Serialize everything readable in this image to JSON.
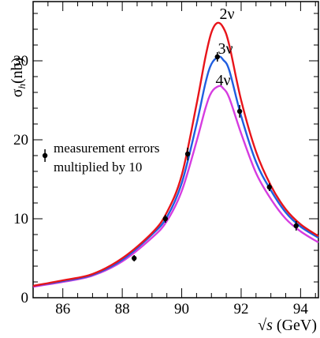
{
  "chart_data": {
    "type": "line",
    "title": "",
    "xlabel": "√s (GeV)",
    "ylabel": "σh(nb)",
    "ylabel_parts": {
      "main": "σ",
      "sub": "h",
      "rest": "(nb)"
    },
    "xlabel_parts": {
      "root": "√",
      "var": "s",
      "rest": " (GeV)"
    },
    "xlim": [
      85.0,
      94.6
    ],
    "ylim": [
      0,
      37.5
    ],
    "x_ticks": [
      86,
      88,
      90,
      92,
      94
    ],
    "x_tick_labels": [
      "86",
      "88",
      "90",
      "92",
      "94"
    ],
    "y_ticks": [
      0,
      10,
      20,
      30
    ],
    "y_tick_labels": [
      "0",
      "10",
      "20",
      "30"
    ],
    "grid": false,
    "legend": "none",
    "series": [
      {
        "name": "2ν",
        "color": "#e8141a",
        "peak_x": 91.2,
        "peak_y": 34.8,
        "x": [
          85.0,
          86.0,
          87.0,
          88.0,
          89.0,
          89.5,
          90.0,
          90.5,
          90.8,
          91.0,
          91.2,
          91.4,
          91.6,
          92.0,
          92.5,
          93.0,
          93.5,
          94.0,
          94.6
        ],
        "y": [
          1.5,
          2.2,
          3.0,
          5.0,
          8.2,
          10.8,
          15.5,
          24.5,
          30.5,
          33.6,
          34.8,
          34.2,
          32.0,
          25.0,
          18.5,
          14.2,
          11.2,
          9.3,
          7.8
        ]
      },
      {
        "name": "3ν",
        "color": "#1f5ee0",
        "peak_x": 91.25,
        "peak_y": 30.5,
        "x": [
          85.0,
          86.0,
          87.0,
          88.0,
          89.0,
          89.5,
          90.0,
          90.5,
          90.8,
          91.0,
          91.25,
          91.4,
          91.6,
          92.0,
          92.5,
          93.0,
          93.5,
          94.0,
          94.6
        ],
        "y": [
          1.5,
          2.1,
          2.9,
          4.8,
          8.0,
          10.2,
          14.5,
          22.0,
          27.2,
          29.6,
          30.5,
          30.1,
          28.8,
          23.0,
          17.2,
          13.6,
          10.8,
          9.0,
          7.6
        ]
      },
      {
        "name": "4ν",
        "color": "#d63ce0",
        "peak_x": 91.25,
        "peak_y": 26.8,
        "x": [
          85.0,
          86.0,
          87.0,
          88.0,
          89.0,
          89.5,
          90.0,
          90.5,
          90.8,
          91.0,
          91.25,
          91.4,
          91.6,
          92.0,
          92.5,
          93.0,
          93.5,
          94.0,
          94.6
        ],
        "y": [
          1.4,
          2.0,
          2.8,
          4.6,
          7.6,
          9.7,
          13.5,
          19.8,
          24.0,
          26.0,
          26.8,
          26.5,
          25.3,
          20.8,
          15.8,
          12.5,
          10.0,
          8.4,
          7.0
        ]
      }
    ],
    "measurements": {
      "name": "measurements",
      "x": [
        88.4,
        89.45,
        90.2,
        91.2,
        91.95,
        92.95,
        93.85
      ],
      "y": [
        5.0,
        10.0,
        18.2,
        30.5,
        23.6,
        14.0,
        9.1
      ],
      "err": [
        0.4,
        0.5,
        0.8,
        0.6,
        0.8,
        0.5,
        0.6
      ]
    },
    "annotations": [
      {
        "text": "measurement errors",
        "line": 1
      },
      {
        "text": "multiplied by 10",
        "line": 2
      }
    ],
    "annotation_marker": {
      "x": 85.4,
      "y": 18.0,
      "err": 0.8
    }
  }
}
